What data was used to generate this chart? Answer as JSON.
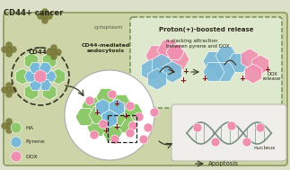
{
  "bg_color": "#dde0c8",
  "cell_bg": "#cdd4a8",
  "box_bg": "#dde8cc",
  "proton_box_edge": "#6a8a50",
  "title": "CD44+ cancer",
  "ha_color": "#8dc86a",
  "pyrene_color": "#78b8d8",
  "dox_color": "#f090b0",
  "cd44_color": "#7a7a3a",
  "nucleus_bg": "#f0eeea",
  "white": "#ffffff",
  "dark_text": "#2a2a1a",
  "arrow_color": "#3a3a2a",
  "plus_color": "#6b1a1a",
  "dna_color": "#7a9080",
  "legend_items": [
    {
      "label": "HA",
      "color": "#8dc86a"
    },
    {
      "label": "Pyrene",
      "color": "#78b8d8"
    },
    {
      "label": "DOX",
      "color": "#f090b0"
    }
  ],
  "labels": {
    "cd44": "CD44",
    "cytoplasm": "cytoplasm",
    "endocytosis": "CD44-mediated\nendocytosis",
    "proton": "Proton(+)-boosted release",
    "pi_stack": "π-stacking attraction\nbetween pyrene and DOX",
    "dox_release": "DOX\nrelease",
    "nucleus": "nucleus",
    "apoptosis": "→ Apoptosis"
  }
}
